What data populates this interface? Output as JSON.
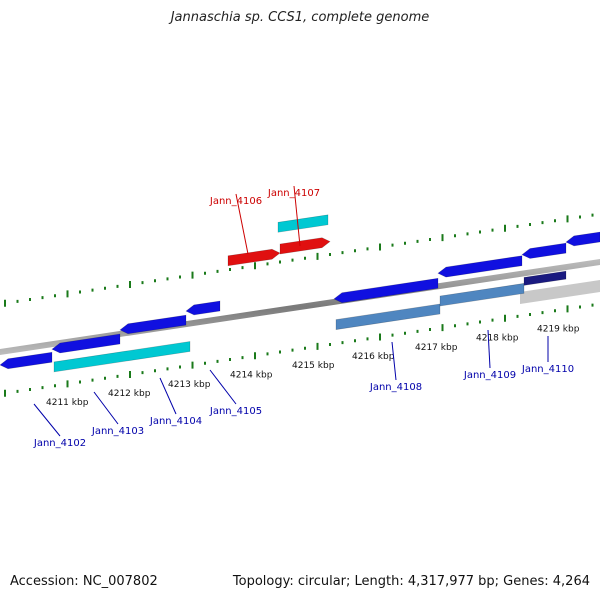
{
  "title": "Jannaschia sp. CCS1, complete genome",
  "footer": {
    "accession": "Accession: NC_007802",
    "summary": "Topology: circular; Length: 4,317,977 bp; Genes: 4,264"
  },
  "colors": {
    "backbone": "#8c8c8c",
    "forward_gene": "#1010e0",
    "reverse_gene": "#1010e0",
    "rna_gene": "#00c8d2",
    "pseudo_gene": "#e01010",
    "cds_feature": "#4f86c0",
    "tick": "#1a7a1a",
    "label_blue": "#0000aa",
    "label_red": "#cc0000"
  },
  "scale_labels": [
    "4211 kbp",
    "4212 kbp",
    "4213 kbp",
    "4214 kbp",
    "4215 kbp",
    "4216 kbp",
    "4217 kbp",
    "4218 kbp",
    "4219 kbp"
  ],
  "gene_labels": [
    {
      "text": "Jann_4102",
      "color": "blue"
    },
    {
      "text": "Jann_4103",
      "color": "blue"
    },
    {
      "text": "Jann_4104",
      "color": "blue"
    },
    {
      "text": "Jann_4105",
      "color": "blue"
    },
    {
      "text": "Jann_4106",
      "color": "red"
    },
    {
      "text": "Jann_4107",
      "color": "red"
    },
    {
      "text": "Jann_4108",
      "color": "blue"
    },
    {
      "text": "Jann_4109",
      "color": "blue"
    },
    {
      "text": "Jann_4110",
      "color": "blue"
    }
  ]
}
